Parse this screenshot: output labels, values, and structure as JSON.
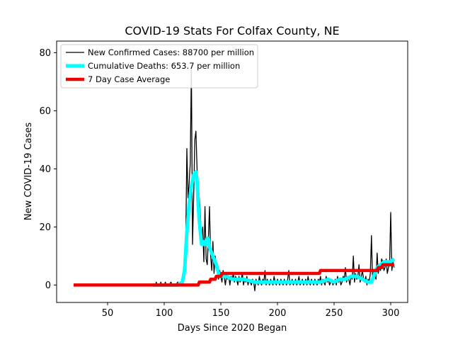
{
  "chart_data": {
    "type": "line",
    "title": "COVID-19 Stats For Colfax County, NE",
    "xlabel": "Days Since 2020 Began",
    "ylabel": "New COVID-19 Cases",
    "xlim": [
      5,
      315
    ],
    "ylim": [
      -6,
      84
    ],
    "xticks": [
      50,
      100,
      150,
      200,
      250,
      300
    ],
    "yticks": [
      0,
      20,
      40,
      60,
      80
    ],
    "grid": false,
    "legend_position": "top-left",
    "series": [
      {
        "name": "New Confirmed Cases: 88700 per million",
        "color": "#000000",
        "points": [
          [
            20,
            0
          ],
          [
            92,
            0
          ],
          [
            93,
            1
          ],
          [
            94,
            0
          ],
          [
            96,
            0
          ],
          [
            97,
            1
          ],
          [
            98,
            0
          ],
          [
            100,
            0
          ],
          [
            101,
            1
          ],
          [
            102,
            0
          ],
          [
            104,
            0
          ],
          [
            106,
            1
          ],
          [
            107,
            0
          ],
          [
            110,
            0
          ],
          [
            112,
            1
          ],
          [
            113,
            0
          ],
          [
            115,
            0
          ],
          [
            116,
            2
          ],
          [
            117,
            4
          ],
          [
            118,
            8
          ],
          [
            119,
            14
          ],
          [
            120,
            47
          ],
          [
            121,
            30
          ],
          [
            122,
            35
          ],
          [
            123,
            42
          ],
          [
            124,
            75
          ],
          [
            125,
            14
          ],
          [
            126,
            30
          ],
          [
            127,
            50
          ],
          [
            128,
            53
          ],
          [
            129,
            40
          ],
          [
            130,
            34
          ],
          [
            131,
            30
          ],
          [
            132,
            24
          ],
          [
            133,
            15
          ],
          [
            134,
            20
          ],
          [
            135,
            8
          ],
          [
            136,
            27
          ],
          [
            137,
            9
          ],
          [
            138,
            7
          ],
          [
            139,
            16
          ],
          [
            140,
            27
          ],
          [
            141,
            10
          ],
          [
            142,
            5
          ],
          [
            143,
            15
          ],
          [
            144,
            4
          ],
          [
            145,
            10
          ],
          [
            146,
            6
          ],
          [
            147,
            4
          ],
          [
            148,
            2
          ],
          [
            149,
            5
          ],
          [
            150,
            3
          ],
          [
            151,
            1
          ],
          [
            152,
            5
          ],
          [
            153,
            3
          ],
          [
            154,
            0
          ],
          [
            155,
            3
          ],
          [
            156,
            2
          ],
          [
            157,
            3
          ],
          [
            158,
            0
          ],
          [
            159,
            3
          ],
          [
            160,
            2
          ],
          [
            161,
            4
          ],
          [
            162,
            1
          ],
          [
            163,
            3
          ],
          [
            164,
            2
          ],
          [
            165,
            0
          ],
          [
            166,
            3
          ],
          [
            167,
            1
          ],
          [
            168,
            2
          ],
          [
            169,
            4
          ],
          [
            170,
            0
          ],
          [
            171,
            2
          ],
          [
            172,
            1
          ],
          [
            173,
            3
          ],
          [
            174,
            0
          ],
          [
            175,
            2
          ],
          [
            176,
            1
          ],
          [
            177,
            0
          ],
          [
            178,
            2
          ],
          [
            179,
            1
          ],
          [
            180,
            -2
          ],
          [
            181,
            2
          ],
          [
            182,
            1
          ],
          [
            183,
            0
          ],
          [
            184,
            3
          ],
          [
            185,
            1
          ],
          [
            186,
            0
          ],
          [
            187,
            2
          ],
          [
            188,
            1
          ],
          [
            189,
            5
          ],
          [
            190,
            0
          ],
          [
            191,
            2
          ],
          [
            192,
            1
          ],
          [
            193,
            0
          ],
          [
            194,
            2
          ],
          [
            195,
            1
          ],
          [
            196,
            0
          ],
          [
            197,
            3
          ],
          [
            198,
            1
          ],
          [
            199,
            0
          ],
          [
            200,
            2
          ],
          [
            201,
            1
          ],
          [
            202,
            0
          ],
          [
            203,
            2
          ],
          [
            204,
            1
          ],
          [
            205,
            0
          ],
          [
            206,
            2
          ],
          [
            207,
            1
          ],
          [
            208,
            0
          ],
          [
            209,
            2
          ],
          [
            210,
            5
          ],
          [
            211,
            0
          ],
          [
            212,
            1
          ],
          [
            213,
            2
          ],
          [
            214,
            0
          ],
          [
            215,
            1
          ],
          [
            216,
            2
          ],
          [
            217,
            0
          ],
          [
            218,
            1
          ],
          [
            219,
            3
          ],
          [
            220,
            0
          ],
          [
            221,
            1
          ],
          [
            222,
            2
          ],
          [
            223,
            0
          ],
          [
            224,
            1
          ],
          [
            225,
            2
          ],
          [
            226,
            0
          ],
          [
            227,
            3
          ],
          [
            228,
            1
          ],
          [
            229,
            0
          ],
          [
            230,
            2
          ],
          [
            231,
            1
          ],
          [
            232,
            0
          ],
          [
            233,
            2
          ],
          [
            234,
            1
          ],
          [
            235,
            0
          ],
          [
            236,
            2
          ],
          [
            237,
            1
          ],
          [
            238,
            3
          ],
          [
            239,
            0
          ],
          [
            240,
            2
          ],
          [
            241,
            1
          ],
          [
            242,
            0
          ],
          [
            243,
            3
          ],
          [
            244,
            1
          ],
          [
            245,
            2
          ],
          [
            246,
            0
          ],
          [
            247,
            1
          ],
          [
            248,
            2
          ],
          [
            249,
            0
          ],
          [
            250,
            1
          ],
          [
            251,
            2
          ],
          [
            252,
            0
          ],
          [
            253,
            3
          ],
          [
            254,
            1
          ],
          [
            255,
            2
          ],
          [
            256,
            0
          ],
          [
            257,
            1
          ],
          [
            258,
            3
          ],
          [
            259,
            2
          ],
          [
            260,
            6
          ],
          [
            261,
            1
          ],
          [
            262,
            3
          ],
          [
            263,
            2
          ],
          [
            264,
            0
          ],
          [
            265,
            3
          ],
          [
            266,
            2
          ],
          [
            267,
            10
          ],
          [
            268,
            1
          ],
          [
            269,
            4
          ],
          [
            270,
            2
          ],
          [
            271,
            3
          ],
          [
            272,
            7
          ],
          [
            273,
            1
          ],
          [
            274,
            3
          ],
          [
            275,
            5
          ],
          [
            276,
            2
          ],
          [
            277,
            1
          ],
          [
            278,
            3
          ],
          [
            279,
            0
          ],
          [
            280,
            2
          ],
          [
            281,
            1
          ],
          [
            282,
            4
          ],
          [
            283,
            17
          ],
          [
            284,
            1
          ],
          [
            285,
            5
          ],
          [
            286,
            3
          ],
          [
            287,
            2
          ],
          [
            288,
            11
          ],
          [
            289,
            4
          ],
          [
            290,
            6
          ],
          [
            291,
            5
          ],
          [
            292,
            9
          ],
          [
            293,
            8
          ],
          [
            294,
            5
          ],
          [
            295,
            6
          ],
          [
            296,
            9
          ],
          [
            297,
            4
          ],
          [
            298,
            6
          ],
          [
            299,
            7
          ],
          [
            300,
            25
          ],
          [
            301,
            5
          ],
          [
            302,
            8
          ],
          [
            303,
            6
          ]
        ],
        "line_width": 1.3
      },
      {
        "name": "Cumulative Deaths: 653.7 per million",
        "color": "#00ffff",
        "points": [
          [
            90,
            0
          ],
          [
            112,
            0
          ],
          [
            116,
            1
          ],
          [
            118,
            5
          ],
          [
            120,
            18
          ],
          [
            122,
            28
          ],
          [
            124,
            34
          ],
          [
            126,
            38
          ],
          [
            128,
            39
          ],
          [
            129,
            36
          ],
          [
            130,
            28
          ],
          [
            131,
            22
          ],
          [
            132,
            18
          ],
          [
            133,
            14
          ],
          [
            134,
            15
          ],
          [
            135,
            14
          ],
          [
            136,
            15
          ],
          [
            137,
            14
          ],
          [
            138,
            16
          ],
          [
            139,
            16
          ],
          [
            140,
            13
          ],
          [
            142,
            11
          ],
          [
            144,
            9
          ],
          [
            146,
            7
          ],
          [
            148,
            4
          ],
          [
            150,
            3
          ],
          [
            155,
            3
          ],
          [
            160,
            2
          ],
          [
            170,
            2
          ],
          [
            180,
            1
          ],
          [
            190,
            1
          ],
          [
            200,
            1
          ],
          [
            210,
            1
          ],
          [
            220,
            1
          ],
          [
            230,
            1
          ],
          [
            238,
            1
          ],
          [
            245,
            2
          ],
          [
            250,
            1
          ],
          [
            255,
            2
          ],
          [
            260,
            2
          ],
          [
            265,
            3
          ],
          [
            270,
            3
          ],
          [
            275,
            2
          ],
          [
            280,
            1
          ],
          [
            283,
            1
          ],
          [
            285,
            3
          ],
          [
            288,
            6
          ],
          [
            291,
            7
          ],
          [
            294,
            8
          ],
          [
            297,
            8
          ],
          [
            300,
            8
          ],
          [
            303,
            9
          ]
        ],
        "line_width": 5
      },
      {
        "name": "7 Day Case Average",
        "color": "#ee0000",
        "points": [
          [
            20,
            0
          ],
          [
            130,
            0
          ],
          [
            131,
            1
          ],
          [
            140,
            1
          ],
          [
            141,
            2
          ],
          [
            145,
            2
          ],
          [
            146,
            3
          ],
          [
            150,
            3
          ],
          [
            151,
            4
          ],
          [
            237,
            4
          ],
          [
            238,
            5
          ],
          [
            288,
            5
          ],
          [
            289,
            6
          ],
          [
            292,
            6
          ],
          [
            293,
            7
          ],
          [
            303,
            7
          ]
        ],
        "line_width": 4.5
      }
    ]
  }
}
